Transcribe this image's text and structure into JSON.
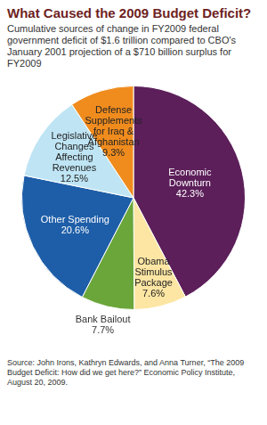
{
  "chart_data": {
    "type": "pie",
    "title": "What Caused the 2009 Budget Deficit?",
    "subtitle": "Cumulative sources of change in FY2009 federal government deficit of $1.6 trillion compared to CBO's January 2001 projection of a $710 billion surplus for FY2009",
    "source": "Source: John Irons, Kathryn Edwards, and Anna Turner, “The 2009 Budget Deficit: How did we get here?” Economic Policy Institute, August 20, 2009.",
    "categories": [
      "Economic Downturn",
      "Obama Stimulus Package",
      "Bank Bailout",
      "Other Spending",
      "Legislative Changes Affecting Revenues",
      "Defense Supplements for Iraq & Afghanistan"
    ],
    "values": [
      42.3,
      7.6,
      7.7,
      20.6,
      12.5,
      9.3
    ],
    "value_labels": [
      "42.3%",
      "7.6%",
      "7.7%",
      "20.6%",
      "12.5%",
      "9.3%"
    ],
    "colors": [
      "#5c1f5a",
      "#fde6a3",
      "#6aa63a",
      "#1e5ea8",
      "#bfe5f5",
      "#f08c1e"
    ],
    "data_labels": true
  }
}
